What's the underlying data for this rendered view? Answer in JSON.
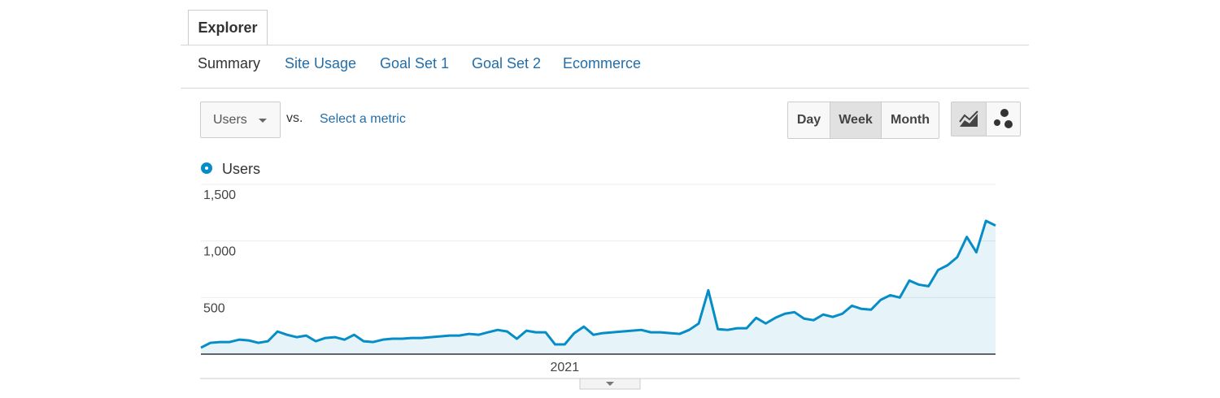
{
  "ui": {
    "tab": "Explorer",
    "nav": [
      "Summary",
      "Site Usage",
      "Goal Set 1",
      "Goal Set 2",
      "Ecommerce"
    ],
    "metric_dropdown": "Users",
    "vs": "vs.",
    "select_metric": "Select a metric",
    "period_buttons": [
      "Day",
      "Week",
      "Month"
    ]
  },
  "chart_data": {
    "type": "area",
    "categories": [
      null,
      null,
      null,
      null,
      null,
      null,
      null,
      null,
      null,
      null,
      null,
      null,
      null,
      null,
      null,
      null,
      null,
      null,
      null,
      null,
      null,
      null,
      null,
      null,
      null,
      null,
      null,
      null,
      null,
      null,
      null,
      null,
      null,
      null,
      null,
      null,
      null,
      null,
      "2021",
      null,
      null,
      null,
      null,
      null,
      null,
      null,
      null,
      null,
      null,
      null,
      null,
      null,
      null,
      null,
      null,
      null,
      null,
      null,
      null,
      null,
      null,
      null,
      null,
      null,
      null,
      null,
      null,
      null,
      null,
      null,
      null,
      null,
      null,
      null,
      null,
      null,
      null,
      null,
      null,
      null,
      null,
      null,
      null,
      null
    ],
    "series": [
      {
        "name": "Users",
        "color": "#058dc7",
        "values": [
          57,
          100,
          107,
          107,
          128,
          121,
          100,
          114,
          200,
          171,
          150,
          164,
          114,
          143,
          150,
          128,
          171,
          114,
          107,
          128,
          136,
          136,
          143,
          143,
          150,
          157,
          164,
          164,
          179,
          171,
          193,
          214,
          200,
          136,
          207,
          193,
          193,
          86,
          86,
          186,
          243,
          171,
          186,
          193,
          200,
          207,
          214,
          193,
          193,
          186,
          179,
          214,
          271,
          564,
          221,
          214,
          229,
          229,
          321,
          271,
          321,
          357,
          371,
          314,
          300,
          350,
          329,
          357,
          428,
          400,
          393,
          479,
          521,
          500,
          650,
          614,
          600,
          743,
          786,
          857,
          1036,
          900,
          1178,
          1136
        ]
      }
    ],
    "ylim": [
      0,
      1500
    ],
    "yticks": [
      500,
      {
        "value": 1000,
        "label": "1,000"
      },
      {
        "value": 1500,
        "label": "1,500"
      }
    ],
    "grid": true
  }
}
